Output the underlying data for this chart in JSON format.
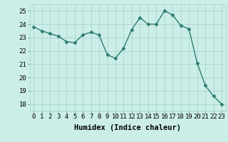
{
  "x": [
    0,
    1,
    2,
    3,
    4,
    5,
    6,
    7,
    8,
    9,
    10,
    11,
    12,
    13,
    14,
    15,
    16,
    17,
    18,
    19,
    20,
    21,
    22,
    23
  ],
  "y": [
    23.8,
    23.5,
    23.3,
    23.1,
    22.7,
    22.6,
    23.2,
    23.4,
    23.2,
    21.7,
    21.45,
    22.2,
    23.6,
    24.5,
    24.0,
    24.0,
    25.0,
    24.7,
    23.9,
    23.65,
    21.1,
    19.4,
    18.6,
    18.0
  ],
  "line_color": "#2d7d70",
  "marker": "D",
  "marker_size": 2.5,
  "line_width": 1.0,
  "bg_color": "#cceee8",
  "grid_color": "#aad4ce",
  "xlabel": "Humidex (Indice chaleur)",
  "xlabel_fontsize": 7.5,
  "ylim": [
    17.5,
    25.5
  ],
  "xlim": [
    -0.5,
    23.5
  ],
  "yticks": [
    18,
    19,
    20,
    21,
    22,
    23,
    24,
    25
  ],
  "xticks": [
    0,
    1,
    2,
    3,
    4,
    5,
    6,
    7,
    8,
    9,
    10,
    11,
    12,
    13,
    14,
    15,
    16,
    17,
    18,
    19,
    20,
    21,
    22,
    23
  ],
  "tick_fontsize": 6.5
}
